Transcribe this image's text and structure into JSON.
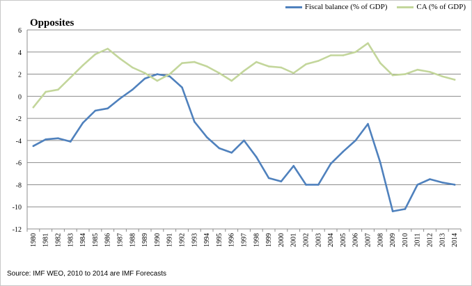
{
  "chart_data": {
    "type": "line",
    "title": "Opposites",
    "xlabel": "",
    "ylabel": "",
    "ylim": [
      -12,
      6
    ],
    "yticks": [
      6,
      4,
      2,
      0,
      -2,
      -4,
      -6,
      -8,
      -10,
      -12
    ],
    "grid": "horizontal",
    "legend_position": "top-right",
    "categories": [
      "1980",
      "1981",
      "1982",
      "1983",
      "1984",
      "1985",
      "1986",
      "1987",
      "1988",
      "1989",
      "1990",
      "1991",
      "1992",
      "1993",
      "1994",
      "1995",
      "1996",
      "1997",
      "1998",
      "1999",
      "2000",
      "2001",
      "2002",
      "2003",
      "2004",
      "2005",
      "2006",
      "2007",
      "2008",
      "2009",
      "2010",
      "2011",
      "2012",
      "2013",
      "2014"
    ],
    "series": [
      {
        "name": "Fiscal balance (% of GDP)",
        "color": "#4f81bd",
        "values": [
          -4.5,
          -3.9,
          -3.8,
          -4.1,
          -2.4,
          -1.3,
          -1.1,
          -0.2,
          0.6,
          1.6,
          2.0,
          1.8,
          0.8,
          -2.3,
          -3.7,
          -4.7,
          -5.1,
          -4.0,
          -5.5,
          -7.4,
          -7.7,
          -6.3,
          -8.0,
          -8.0,
          -6.1,
          -5.0,
          -4.0,
          -2.5,
          -6.0,
          -10.4,
          -10.2,
          -8.0,
          -7.5,
          -7.8,
          -8.0
        ]
      },
      {
        "name": "CA (% of GDP)",
        "color": "#c3d69b",
        "values": [
          -1.0,
          0.4,
          0.6,
          1.7,
          2.8,
          3.8,
          4.3,
          3.4,
          2.6,
          2.1,
          1.4,
          2.0,
          3.0,
          3.1,
          2.7,
          2.1,
          1.4,
          2.3,
          3.1,
          2.7,
          2.6,
          2.1,
          2.9,
          3.2,
          3.7,
          3.7,
          4.0,
          4.8,
          3.0,
          1.9,
          2.0,
          2.4,
          2.2,
          1.8,
          1.5
        ]
      }
    ],
    "source": "Source: IMF WEO, 2010 to 2014 are IMF Forecasts"
  }
}
